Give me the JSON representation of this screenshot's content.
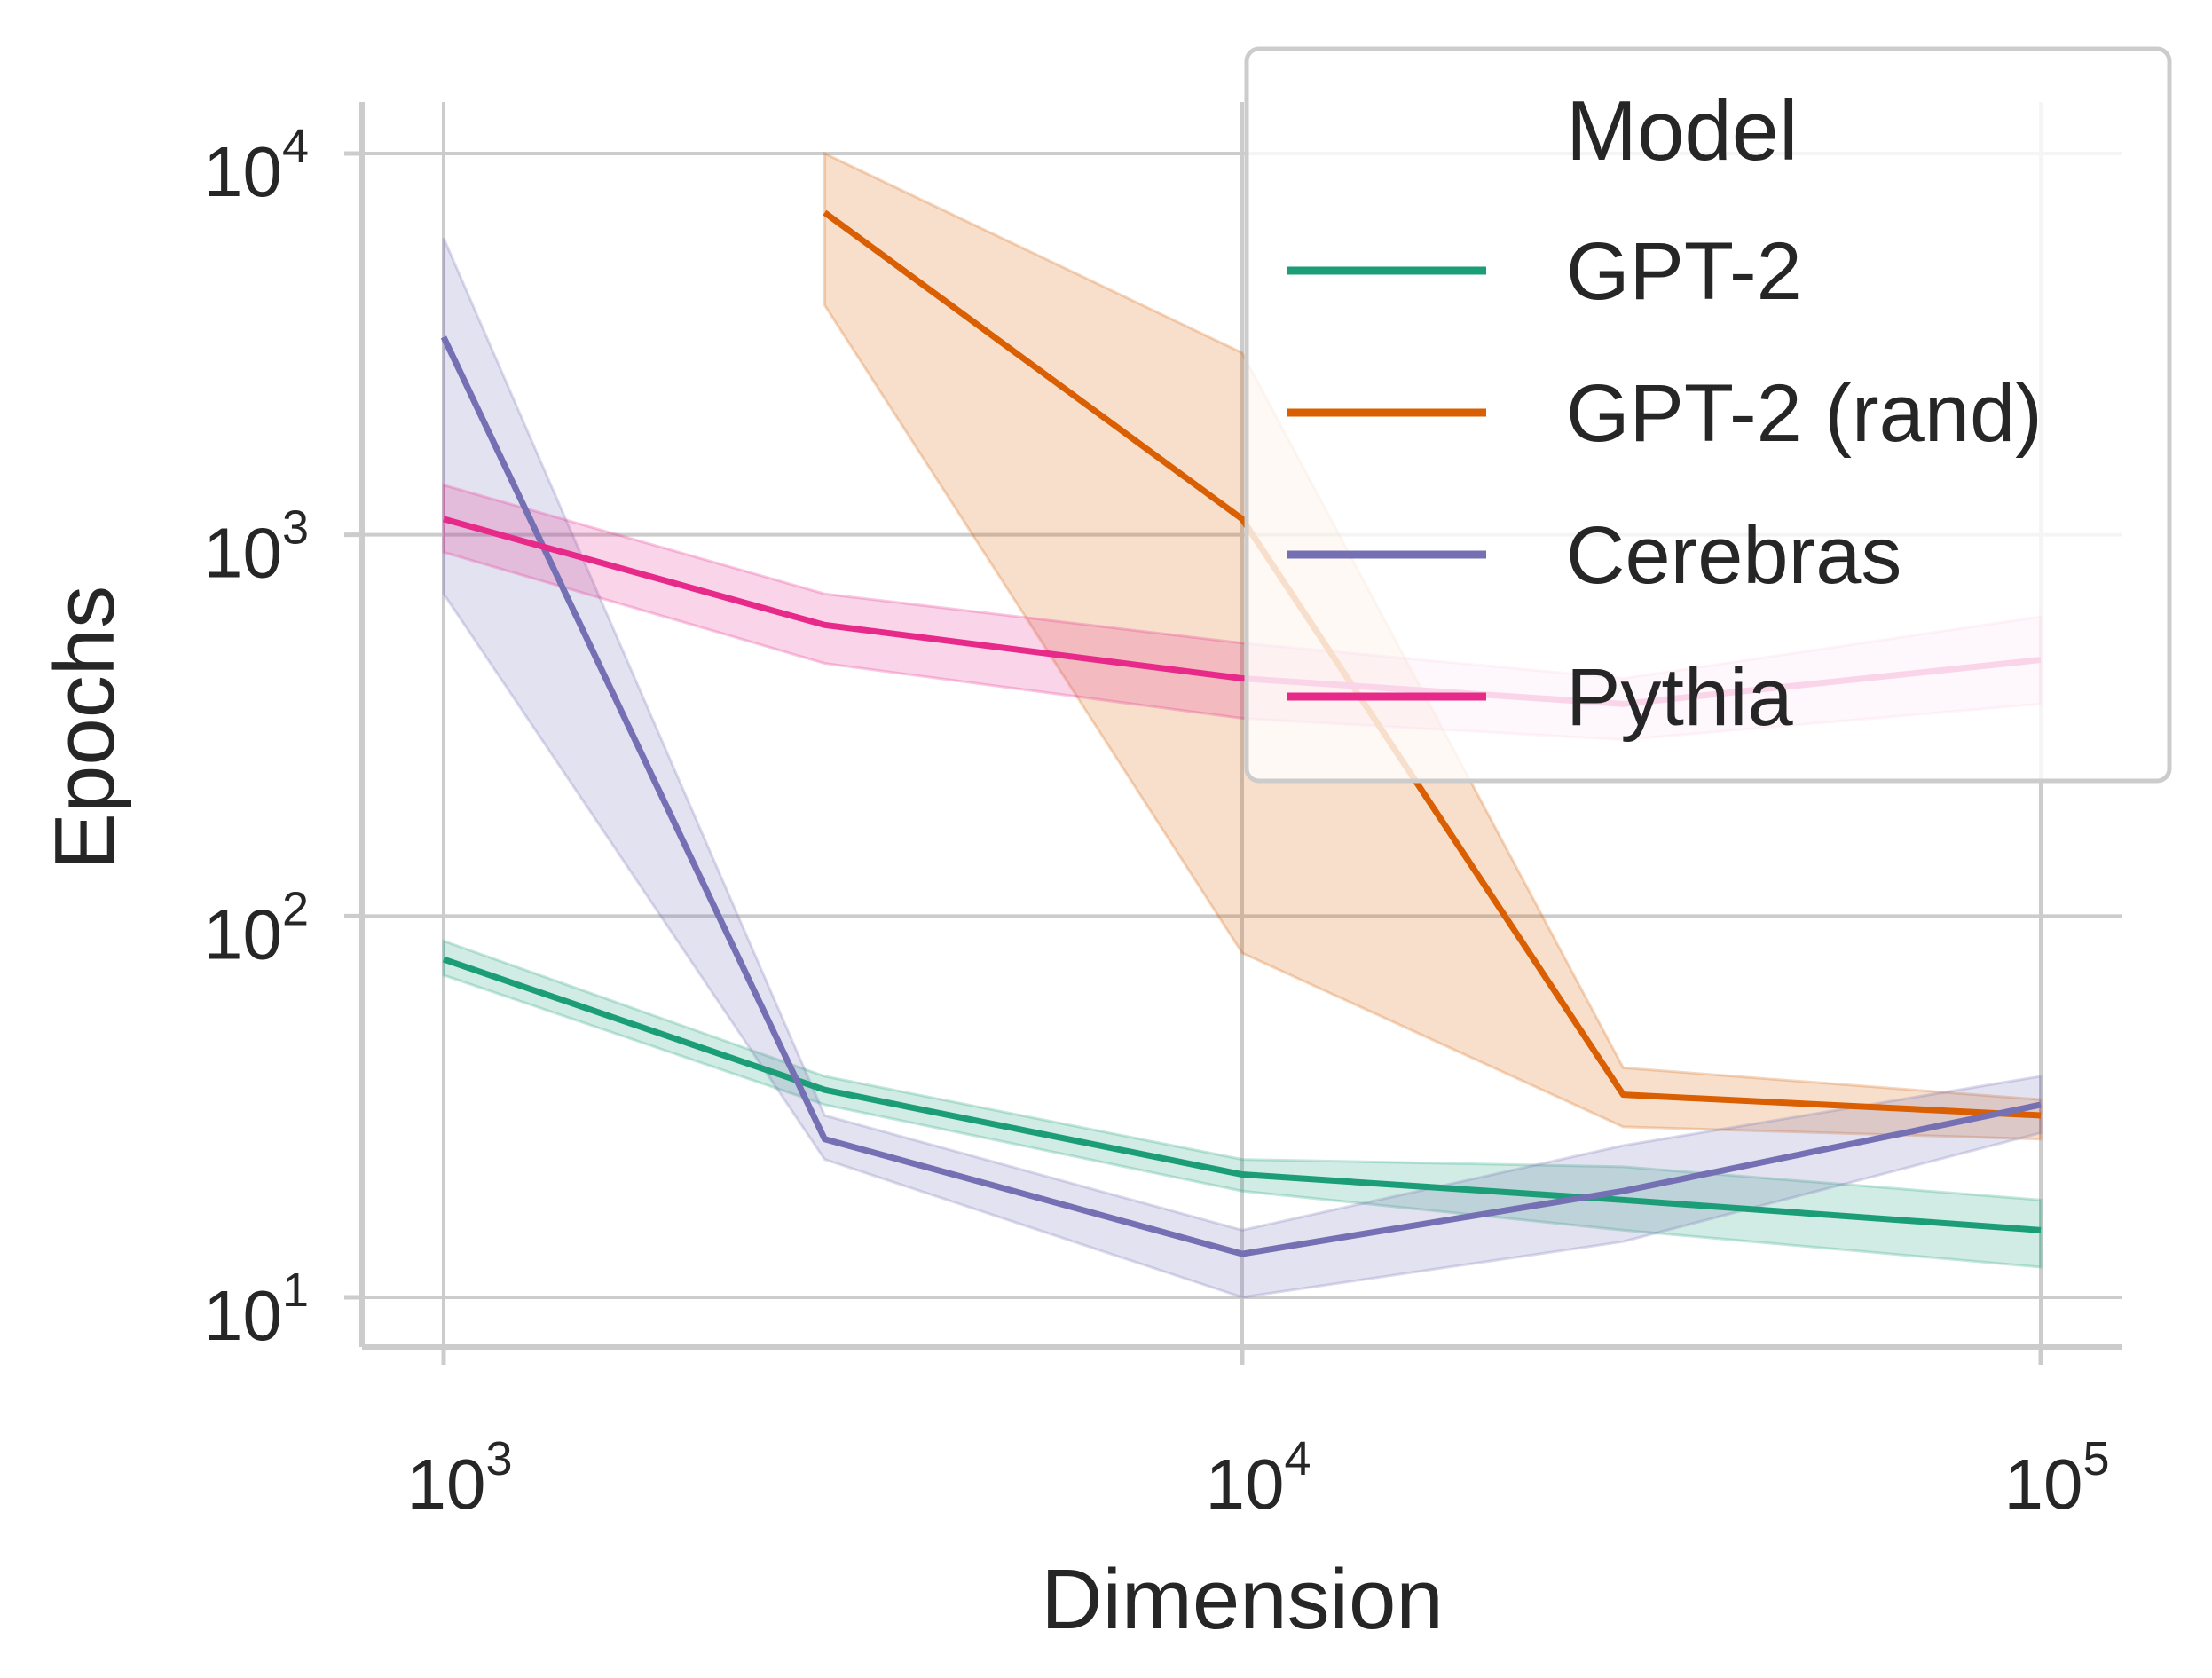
{
  "chart_data": {
    "type": "line",
    "title": "",
    "xlabel": "Dimension",
    "ylabel": "Epochs",
    "xscale": "log",
    "yscale": "log",
    "xlim": [
      800,
      120000
    ],
    "ylim": [
      7.5,
      14000
    ],
    "grid": true,
    "xticks": [
      {
        "value": 1000,
        "base": "10",
        "exp": "3"
      },
      {
        "value": 10000,
        "base": "10",
        "exp": "4"
      },
      {
        "value": 100000,
        "base": "10",
        "exp": "5"
      }
    ],
    "yticks": [
      {
        "value": 10,
        "base": "10",
        "exp": "1"
      },
      {
        "value": 100,
        "base": "10",
        "exp": "2"
      },
      {
        "value": 1000,
        "base": "10",
        "exp": "3"
      },
      {
        "value": 10000,
        "base": "10",
        "exp": "4"
      }
    ],
    "legend": {
      "title": "Model",
      "placement": "top-right"
    },
    "series": [
      {
        "name": "GPT-2",
        "color": "#1b9e77",
        "x": [
          1000,
          3000,
          10000,
          30000,
          100000
        ],
        "y": [
          77,
          35,
          21,
          18,
          15
        ],
        "lower": [
          70,
          32,
          19,
          15,
          12
        ],
        "upper": [
          86,
          38,
          23,
          22,
          18
        ]
      },
      {
        "name": "GPT-2 (rand)",
        "color": "#d95f02",
        "x": [
          3000,
          10000,
          30000,
          100000
        ],
        "y": [
          7000,
          1100,
          34,
          30
        ],
        "lower": [
          4000,
          80,
          28,
          26
        ],
        "upper": [
          10000,
          3000,
          40,
          33
        ]
      },
      {
        "name": "Cerebras",
        "color": "#7570b3",
        "x": [
          1000,
          3000,
          10000,
          30000,
          100000
        ],
        "y": [
          3300,
          26,
          13,
          19,
          32
        ],
        "lower": [
          700,
          23,
          10,
          14,
          27
        ],
        "upper": [
          6000,
          30,
          15,
          25,
          38
        ]
      },
      {
        "name": "Pythia",
        "color": "#e7298a",
        "x": [
          1000,
          3000,
          10000,
          30000,
          100000
        ],
        "y": [
          1100,
          580,
          420,
          360,
          470
        ],
        "lower": [
          900,
          460,
          330,
          290,
          360
        ],
        "upper": [
          1350,
          700,
          520,
          420,
          610
        ]
      }
    ]
  }
}
